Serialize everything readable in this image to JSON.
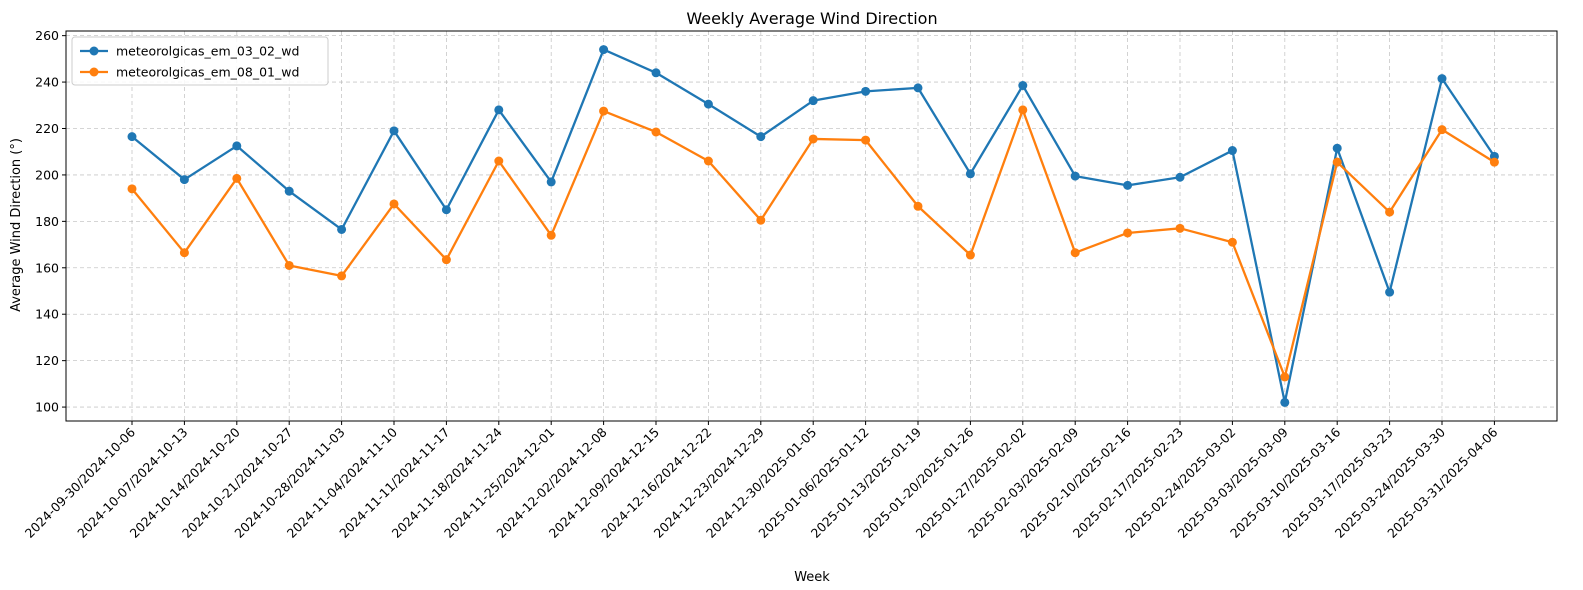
{
  "chart_data": {
    "type": "line",
    "title": "Weekly Average Wind Direction",
    "xlabel": "Week",
    "ylabel": "Average Wind Direction (°)",
    "ylim": [
      94,
      262
    ],
    "yticks": [
      100,
      120,
      140,
      160,
      180,
      200,
      220,
      240,
      260
    ],
    "grid": true,
    "legend_position": "top-left",
    "categories": [
      "2024-09-30/2024-10-06",
      "2024-10-07/2024-10-13",
      "2024-10-14/2024-10-20",
      "2024-10-21/2024-10-27",
      "2024-10-28/2024-11-03",
      "2024-11-04/2024-11-10",
      "2024-11-11/2024-11-17",
      "2024-11-18/2024-11-24",
      "2024-11-25/2024-12-01",
      "2024-12-02/2024-12-08",
      "2024-12-09/2024-12-15",
      "2024-12-16/2024-12-22",
      "2024-12-23/2024-12-29",
      "2024-12-30/2025-01-05",
      "2025-01-06/2025-01-12",
      "2025-01-13/2025-01-19",
      "2025-01-20/2025-01-26",
      "2025-01-27/2025-02-02",
      "2025-02-03/2025-02-09",
      "2025-02-10/2025-02-16",
      "2025-02-17/2025-02-23",
      "2025-02-24/2025-03-02",
      "2025-03-03/2025-03-09",
      "2025-03-10/2025-03-16",
      "2025-03-17/2025-03-23",
      "2025-03-24/2025-03-30",
      "2025-03-31/2025-04-06"
    ],
    "series": [
      {
        "name": "meteorolgicas_em_03_02_wd",
        "color": "#1f77b4",
        "values": [
          216.5,
          198.0,
          212.5,
          193.0,
          176.5,
          219.0,
          185.0,
          228.0,
          197.0,
          254.0,
          244.0,
          230.5,
          216.5,
          232.0,
          236.0,
          237.5,
          200.5,
          238.5,
          199.5,
          195.5,
          199.0,
          210.5,
          102.0,
          211.5,
          149.5,
          241.5,
          208.0
        ]
      },
      {
        "name": "meteorolgicas_em_08_01_wd",
        "color": "#ff7f0e",
        "values": [
          194.0,
          166.5,
          198.5,
          161.0,
          156.5,
          187.5,
          163.5,
          206.0,
          174.0,
          227.5,
          218.5,
          206.0,
          180.5,
          215.5,
          215.0,
          186.5,
          165.5,
          228.0,
          166.5,
          175.0,
          177.0,
          171.0,
          113.0,
          205.5,
          184.0,
          219.5,
          205.5
        ]
      }
    ]
  }
}
